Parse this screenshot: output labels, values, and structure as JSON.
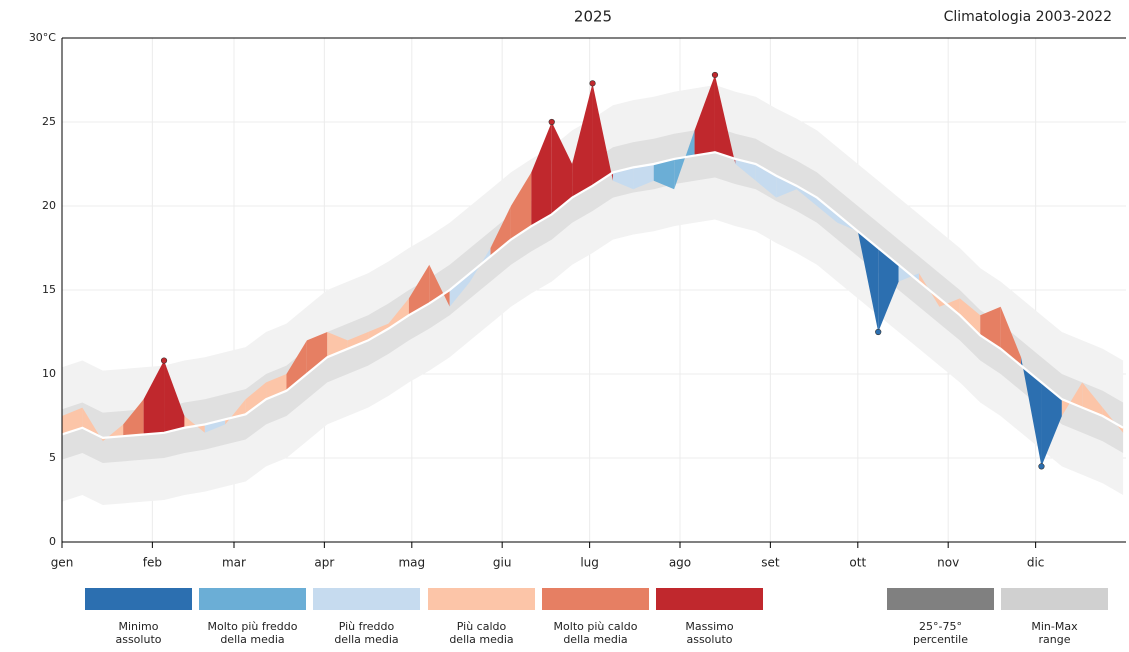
{
  "chart_data": {
    "type": "climate-band",
    "title": "2025",
    "subtitle": "Climatologia 2003-2022",
    "xlim": [
      0,
      365
    ],
    "xticks": [
      {
        "value": 0,
        "label": "gen"
      },
      {
        "value": 31,
        "label": "feb"
      },
      {
        "value": 59,
        "label": "mar"
      },
      {
        "value": 90,
        "label": "apr"
      },
      {
        "value": 120,
        "label": "mag"
      },
      {
        "value": 151,
        "label": "giu"
      },
      {
        "value": 181,
        "label": "lug"
      },
      {
        "value": 212,
        "label": "ago"
      },
      {
        "value": 243,
        "label": "set"
      },
      {
        "value": 273,
        "label": "ott"
      },
      {
        "value": 304,
        "label": "nov"
      },
      {
        "value": 334,
        "label": "dic"
      }
    ],
    "ylim": [
      0,
      30
    ],
    "yticks": [
      0,
      5,
      10,
      15,
      20,
      25,
      {
        "value": 30,
        "label": "30°C"
      }
    ],
    "grid": true,
    "x": [
      0,
      7,
      14,
      21,
      28,
      35,
      42,
      49,
      56,
      63,
      70,
      77,
      84,
      91,
      98,
      105,
      112,
      119,
      126,
      133,
      140,
      147,
      154,
      161,
      168,
      175,
      182,
      189,
      196,
      203,
      210,
      217,
      224,
      231,
      238,
      245,
      252,
      259,
      266,
      273,
      280,
      287,
      294,
      301,
      308,
      315,
      322,
      329,
      336,
      343,
      350,
      357,
      364
    ],
    "mean": [
      6.4,
      6.8,
      6.2,
      6.3,
      6.4,
      6.5,
      6.8,
      7.0,
      7.3,
      7.6,
      8.5,
      9.0,
      10.0,
      11.0,
      11.5,
      12.0,
      12.7,
      13.5,
      14.2,
      15.0,
      16.0,
      17.0,
      18.0,
      18.8,
      19.5,
      20.5,
      21.2,
      22.0,
      22.3,
      22.5,
      22.8,
      23.0,
      23.2,
      22.8,
      22.5,
      21.8,
      21.2,
      20.5,
      19.5,
      18.5,
      17.5,
      16.5,
      15.5,
      14.5,
      13.5,
      12.3,
      11.5,
      10.5,
      9.5,
      8.5,
      8.0,
      7.5,
      6.8
    ],
    "observed": [
      7.5,
      8.0,
      6.0,
      7.0,
      8.5,
      10.8,
      7.5,
      6.5,
      7.0,
      8.5,
      9.5,
      10.0,
      12.0,
      12.5,
      12.0,
      12.5,
      13.0,
      14.5,
      16.5,
      14.0,
      15.5,
      17.5,
      20.0,
      22.0,
      25.0,
      22.5,
      27.3,
      21.5,
      21.0,
      21.5,
      21.0,
      24.5,
      27.8,
      22.5,
      21.5,
      20.5,
      21.0,
      20.0,
      19.0,
      18.5,
      12.5,
      15.5,
      16.0,
      14.0,
      14.5,
      13.5,
      14.0,
      11.0,
      4.5,
      7.5,
      9.5,
      8.0,
      6.5
    ],
    "p25": [
      4.9,
      5.3,
      4.7,
      4.8,
      4.9,
      5.0,
      5.3,
      5.5,
      5.8,
      6.1,
      7.0,
      7.5,
      8.5,
      9.5,
      10.0,
      10.5,
      11.2,
      12.0,
      12.7,
      13.5,
      14.5,
      15.5,
      16.5,
      17.3,
      18.0,
      19.0,
      19.7,
      20.5,
      20.8,
      21.0,
      21.3,
      21.5,
      21.7,
      21.3,
      21.0,
      20.3,
      19.7,
      19.0,
      18.0,
      17.0,
      16.0,
      15.0,
      14.0,
      13.0,
      12.0,
      10.8,
      10.0,
      9.0,
      8.0,
      7.0,
      6.5,
      6.0,
      5.3
    ],
    "p75": [
      7.9,
      8.3,
      7.7,
      7.8,
      7.9,
      8.0,
      8.3,
      8.5,
      8.8,
      9.1,
      10.0,
      10.5,
      11.5,
      12.5,
      13.0,
      13.5,
      14.2,
      15.0,
      15.7,
      16.5,
      17.5,
      18.5,
      19.5,
      20.3,
      21.0,
      22.0,
      22.7,
      23.5,
      23.8,
      24.0,
      24.3,
      24.5,
      24.7,
      24.3,
      24.0,
      23.3,
      22.7,
      22.0,
      21.0,
      20.0,
      19.0,
      18.0,
      17.0,
      16.0,
      15.0,
      13.8,
      13.0,
      12.0,
      11.0,
      10.0,
      9.5,
      9.0,
      8.3
    ],
    "min": [
      2.4,
      2.8,
      2.2,
      2.3,
      2.4,
      2.5,
      2.8,
      3.0,
      3.3,
      3.6,
      4.5,
      5.0,
      6.0,
      7.0,
      7.5,
      8.0,
      8.7,
      9.5,
      10.2,
      11.0,
      12.0,
      13.0,
      14.0,
      14.8,
      15.5,
      16.5,
      17.2,
      18.0,
      18.3,
      18.5,
      18.8,
      19.0,
      19.2,
      18.8,
      18.5,
      17.8,
      17.2,
      16.5,
      15.5,
      14.5,
      13.5,
      12.5,
      11.5,
      10.5,
      9.5,
      8.3,
      7.5,
      6.5,
      5.5,
      4.5,
      4.0,
      3.5,
      2.8
    ],
    "max": [
      10.4,
      10.8,
      10.2,
      10.3,
      10.4,
      10.5,
      10.8,
      11.0,
      11.3,
      11.6,
      12.5,
      13.0,
      14.0,
      15.0,
      15.5,
      16.0,
      16.7,
      17.5,
      18.2,
      19.0,
      20.0,
      21.0,
      22.0,
      22.8,
      23.5,
      24.5,
      25.2,
      26.0,
      26.3,
      26.5,
      26.8,
      27.0,
      27.2,
      26.8,
      26.5,
      25.8,
      25.2,
      24.5,
      23.5,
      22.5,
      21.5,
      20.5,
      19.5,
      18.5,
      17.5,
      16.3,
      15.5,
      14.5,
      13.5,
      12.5,
      12.0,
      11.5,
      10.8
    ],
    "legend": [
      {
        "label_lines": [
          "Minimo",
          "assoluto"
        ],
        "color": "#2c6fb0"
      },
      {
        "label_lines": [
          "Molto più freddo",
          "della media"
        ],
        "color": "#6baed6"
      },
      {
        "label_lines": [
          "Più freddo",
          "della media"
        ],
        "color": "#c6dbef"
      },
      {
        "label_lines": [
          "Più caldo",
          "della media"
        ],
        "color": "#fcc5a8"
      },
      {
        "label_lines": [
          "Molto più caldo",
          "della media"
        ],
        "color": "#e67f63"
      },
      {
        "label_lines": [
          "Massimo",
          "assoluto"
        ],
        "color": "#c0282d"
      },
      {
        "label_lines": [
          "25°-75°",
          "percentile"
        ],
        "color": "#808080"
      },
      {
        "label_lines": [
          "Min-Max",
          "range"
        ],
        "color": "#d0d0d0"
      }
    ]
  }
}
